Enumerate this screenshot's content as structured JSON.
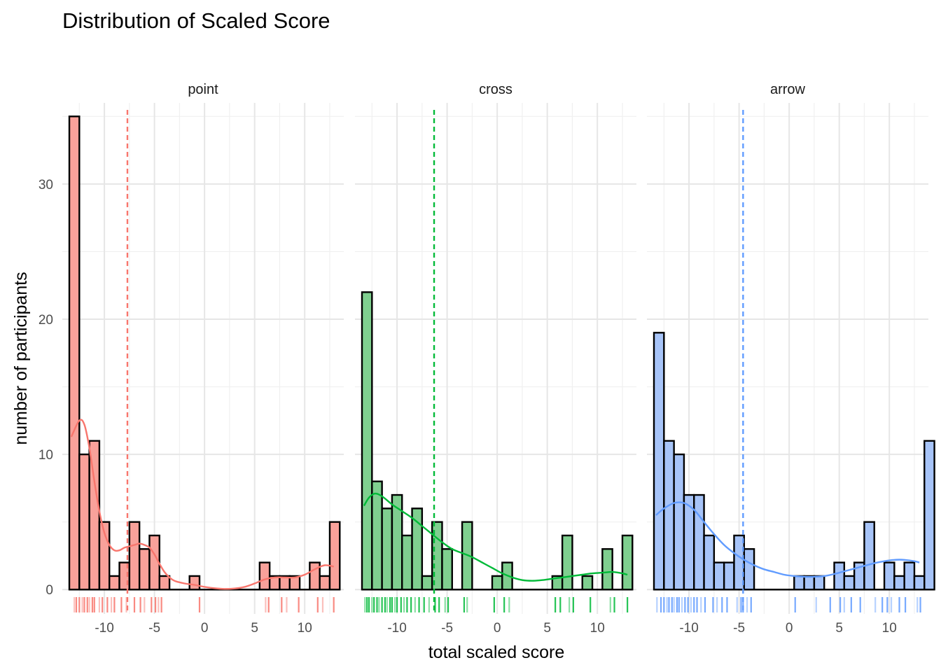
{
  "chart_data": {
    "type": "histogram",
    "title": "Distribution of Scaled Score",
    "xlabel": "total scaled score",
    "ylabel": "number of participants",
    "xlim": [
      -14.2,
      13.9
    ],
    "ylim": [
      -1.8,
      36
    ],
    "x_ticks": [
      -10,
      -5,
      0,
      5,
      10
    ],
    "y_ticks": [
      0,
      10,
      20,
      30
    ],
    "bin_start": -13.5,
    "bin_width": 1,
    "grid": true,
    "legend": "none",
    "panels": [
      {
        "name": "point",
        "color": "#F8766D",
        "fill": "#F9A19A",
        "mean": -7.7,
        "counts": [
          35,
          10,
          11,
          5,
          1,
          2,
          5,
          3,
          4,
          1,
          0,
          0,
          1,
          0,
          0,
          0,
          0,
          0,
          0,
          2,
          1,
          1,
          1,
          0,
          2,
          1,
          5
        ],
        "density": [
          [
            -13.3,
            11.3
          ],
          [
            -12.5,
            12.5
          ],
          [
            -12,
            12.2
          ],
          [
            -11.5,
            10.5
          ],
          [
            -11,
            8
          ],
          [
            -10.5,
            5.8
          ],
          [
            -10,
            4.2
          ],
          [
            -9.5,
            3.3
          ],
          [
            -9,
            2.9
          ],
          [
            -8.5,
            2.9
          ],
          [
            -8,
            3.1
          ],
          [
            -7.5,
            3.2
          ],
          [
            -7,
            3.3
          ],
          [
            -6.5,
            3.4
          ],
          [
            -6,
            3.3
          ],
          [
            -5.5,
            3.1
          ],
          [
            -5,
            2.6
          ],
          [
            -4.5,
            1.9
          ],
          [
            -4,
            1.3
          ],
          [
            -3.5,
            0.9
          ],
          [
            -3,
            0.65
          ],
          [
            -2,
            0.45
          ],
          [
            -1,
            0.35
          ],
          [
            0,
            0.2
          ],
          [
            1,
            0.1
          ],
          [
            2,
            0.05
          ],
          [
            3,
            0.08
          ],
          [
            4,
            0.2
          ],
          [
            5,
            0.45
          ],
          [
            6,
            0.75
          ],
          [
            7,
            0.9
          ],
          [
            8,
            0.9
          ],
          [
            9,
            0.9
          ],
          [
            10,
            1.1
          ],
          [
            11,
            1.5
          ],
          [
            12,
            1.8
          ],
          [
            12.9,
            1.7
          ]
        ],
        "rug": [
          -13,
          -12.8,
          -12.5,
          -12.2,
          -12,
          -11.7,
          -11.5,
          -11.2,
          -11,
          -10.5,
          -10.2,
          -9.7,
          -9.3,
          -9,
          -8.3,
          -7.8,
          -7,
          -6.4,
          -6,
          -5.3,
          -4.9,
          -4.6,
          -4.3,
          -0.5,
          6.1,
          6.4,
          7.7,
          8.2,
          9.4,
          11.3,
          11.8,
          12.9
        ]
      },
      {
        "name": "cross",
        "color": "#00BA38",
        "fill": "#7FCF8F",
        "mean": -6.3,
        "counts": [
          22,
          8,
          6,
          7,
          4,
          6,
          1,
          5,
          3,
          0,
          5,
          0,
          0,
          1,
          2,
          0,
          0,
          0,
          0,
          1,
          4,
          0,
          1,
          0,
          3,
          0,
          4
        ],
        "density": [
          [
            -13.3,
            6.2
          ],
          [
            -12.8,
            6.8
          ],
          [
            -12.2,
            7.1
          ],
          [
            -11.5,
            6.9
          ],
          [
            -10.5,
            6.3
          ],
          [
            -9.5,
            5.8
          ],
          [
            -8.5,
            5.3
          ],
          [
            -7.5,
            4.7
          ],
          [
            -6.5,
            4.1
          ],
          [
            -5.5,
            3.5
          ],
          [
            -4.5,
            3
          ],
          [
            -3.5,
            2.7
          ],
          [
            -2.5,
            2.4
          ],
          [
            -1.5,
            2
          ],
          [
            -0.5,
            1.6
          ],
          [
            0.5,
            1.2
          ],
          [
            1.5,
            0.9
          ],
          [
            2.5,
            0.7
          ],
          [
            3.5,
            0.65
          ],
          [
            4.5,
            0.7
          ],
          [
            5.5,
            0.8
          ],
          [
            6.5,
            0.9
          ],
          [
            7.5,
            1
          ],
          [
            8.5,
            1.1
          ],
          [
            9.5,
            1.2
          ],
          [
            10.5,
            1.25
          ],
          [
            11.5,
            1.3
          ],
          [
            12.5,
            1.2
          ],
          [
            13,
            1.1
          ]
        ],
        "rug": [
          -13.2,
          -13,
          -12.8,
          -12.5,
          -12.3,
          -12,
          -11.8,
          -11.5,
          -11.2,
          -11,
          -10.7,
          -10.5,
          -10.2,
          -10,
          -9.6,
          -9.3,
          -9,
          -8.6,
          -8.2,
          -7.8,
          -7.3,
          -6.8,
          -6.2,
          -5.8,
          -5.2,
          -4.9,
          -3.3,
          -3,
          -0.3,
          0.7,
          1.2,
          5.8,
          6.3,
          7.2,
          7.6,
          9.3,
          11.3,
          11.7,
          13
        ]
      },
      {
        "name": "arrow",
        "color": "#619CFF",
        "fill": "#A7C4F8",
        "mean": -4.6,
        "counts": [
          19,
          11,
          10,
          7,
          7,
          4,
          2,
          2,
          4,
          3,
          0,
          0,
          0,
          0,
          1,
          1,
          1,
          0,
          2,
          1,
          2,
          5,
          0,
          2,
          1,
          2,
          1,
          11
        ],
        "density": [
          [
            -13.3,
            5.5
          ],
          [
            -12.5,
            6
          ],
          [
            -11.5,
            6.4
          ],
          [
            -10.5,
            6.4
          ],
          [
            -9.5,
            5.9
          ],
          [
            -8.5,
            5
          ],
          [
            -7.5,
            4.1
          ],
          [
            -6.5,
            3.3
          ],
          [
            -5.5,
            2.7
          ],
          [
            -4.5,
            2.2
          ],
          [
            -3.5,
            1.8
          ],
          [
            -2.5,
            1.5
          ],
          [
            -1.5,
            1.3
          ],
          [
            -0.5,
            1.1
          ],
          [
            0.5,
            1
          ],
          [
            1.5,
            0.95
          ],
          [
            2.5,
            0.95
          ],
          [
            3.5,
            1
          ],
          [
            4.5,
            1.15
          ],
          [
            5.5,
            1.35
          ],
          [
            6.5,
            1.55
          ],
          [
            7.5,
            1.75
          ],
          [
            8.5,
            1.95
          ],
          [
            9.5,
            2.1
          ],
          [
            10.5,
            2.2
          ],
          [
            11.5,
            2.2
          ],
          [
            12.5,
            2.1
          ],
          [
            13,
            2
          ]
        ],
        "rug": [
          -13.2,
          -12.8,
          -12.5,
          -12.2,
          -12,
          -11.7,
          -11.5,
          -11.2,
          -11,
          -10.7,
          -10.4,
          -10.1,
          -9.8,
          -9.5,
          -9.2,
          -8.8,
          -8.4,
          -7.6,
          -7.2,
          -6.7,
          -6.2,
          -5.2,
          -4.8,
          -4.6,
          -4.2,
          -3.8,
          0.6,
          2.7,
          4.1,
          5.1,
          5.5,
          6.2,
          7.1,
          8.6,
          9.3,
          9.8,
          10.2,
          11,
          11.6,
          12.8,
          13.1
        ]
      }
    ]
  }
}
